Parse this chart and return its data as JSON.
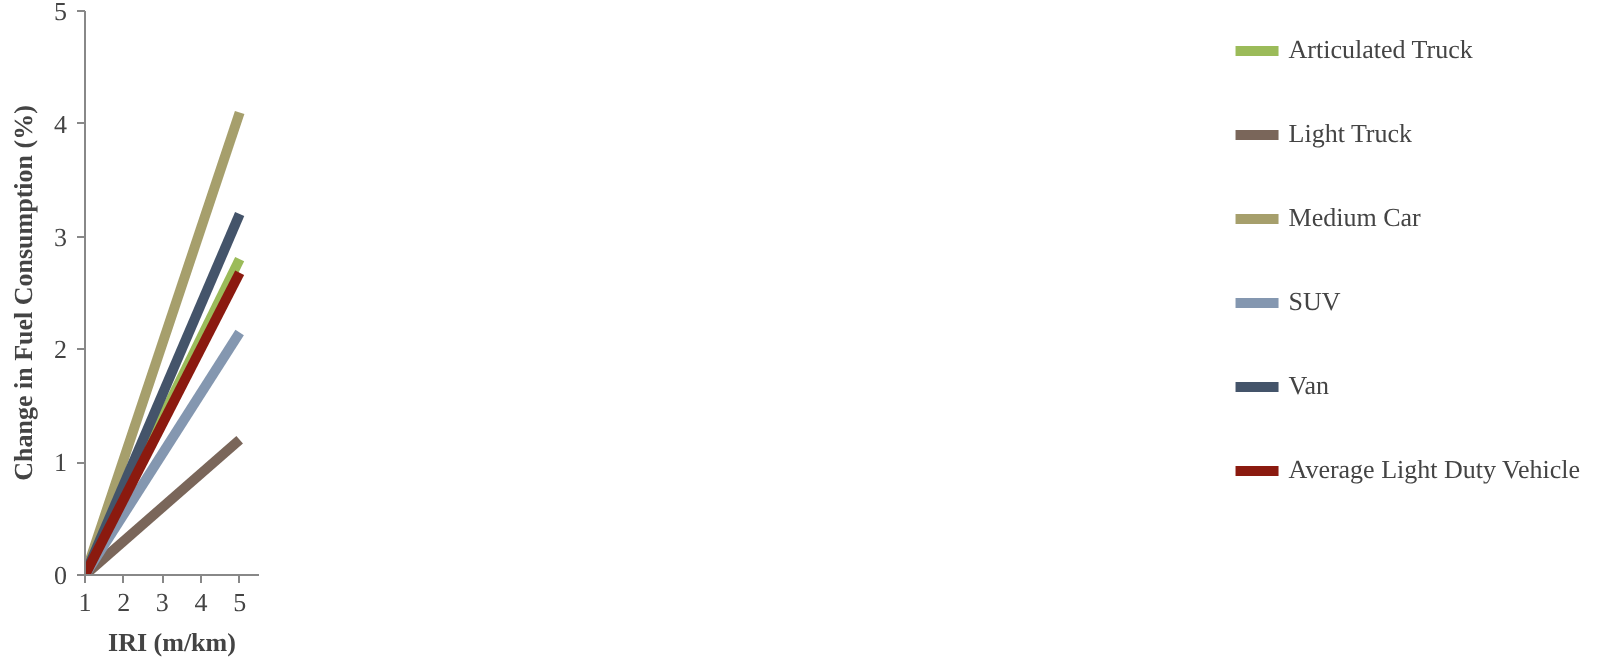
{
  "chart_data": {
    "type": "line",
    "xlabel": "IRI (m/km)",
    "ylabel": "Change in Fuel Consumption (%)",
    "x": [
      1,
      5
    ],
    "xlim": [
      1,
      5.5
    ],
    "xticks": [
      1,
      2,
      3,
      4,
      5
    ],
    "ylim": [
      0,
      5
    ],
    "yticks": [
      0,
      1,
      2,
      3,
      4,
      5
    ],
    "grid": false,
    "legend": "right",
    "marker": "none",
    "line_style": "solid",
    "series": [
      {
        "name": "Articulated Truck",
        "color": "#9bbb59",
        "values": [
          0,
          2.8
        ]
      },
      {
        "name": "Light Truck",
        "color": "#7a665a",
        "values": [
          0,
          1.2
        ]
      },
      {
        "name": "Medium Car",
        "color": "#a69f6c",
        "values": [
          0,
          4.1
        ]
      },
      {
        "name": "SUV",
        "color": "#8497b0",
        "values": [
          0,
          2.15
        ]
      },
      {
        "name": "Van",
        "color": "#44546a",
        "values": [
          0,
          3.2
        ]
      },
      {
        "name": "Average Light Duty Vehicle",
        "color": "#8b1a0f",
        "values": [
          0,
          2.68
        ]
      }
    ]
  }
}
